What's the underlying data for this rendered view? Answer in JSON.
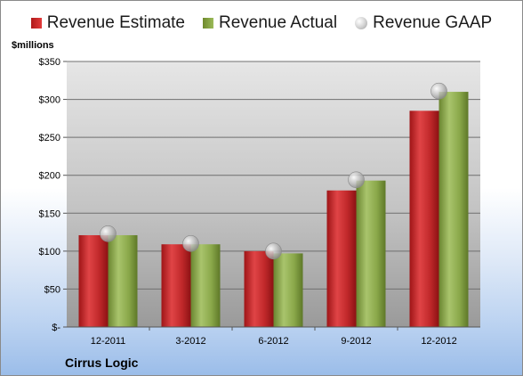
{
  "legend": {
    "estimate_label": "Revenue Estimate",
    "actual_label": "Revenue Actual",
    "gaap_label": "Revenue GAAP"
  },
  "unit_label": "$millions",
  "company": "Cirrus Logic",
  "colors": {
    "estimate": "#c0282a",
    "actual": "#8aa84a",
    "gaap": "#b8b8b8"
  },
  "chart_data": {
    "type": "bar",
    "title": "",
    "xlabel": "",
    "ylabel": "$millions",
    "categories": [
      "12-2011",
      "3-2012",
      "6-2012",
      "9-2012",
      "12-2012"
    ],
    "series": [
      {
        "name": "Revenue Estimate",
        "type": "bar",
        "values": [
          121,
          109,
          100,
          180,
          285
        ]
      },
      {
        "name": "Revenue Actual",
        "type": "bar",
        "values": [
          121,
          109,
          97,
          193,
          310
        ]
      },
      {
        "name": "Revenue GAAP",
        "type": "scatter",
        "values": [
          123,
          110,
          100,
          194,
          311
        ]
      }
    ],
    "ylim": [
      0,
      350
    ],
    "yticks": [
      0,
      50,
      100,
      150,
      200,
      250,
      300,
      350
    ],
    "ytick_labels": [
      "$-",
      "$50",
      "$100",
      "$150",
      "$200",
      "$250",
      "$300",
      "$350"
    ],
    "grid": true,
    "legend_position": "top"
  }
}
